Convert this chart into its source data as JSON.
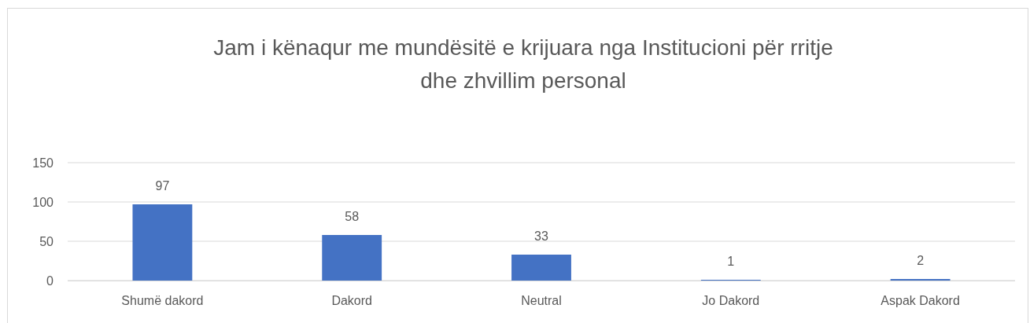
{
  "chart_data": {
    "type": "bar",
    "title": "Jam i kënaqur me mundësitë e krijuara nga Institucioni për rritje dhe zhvillim personal",
    "categories": [
      "Shumë dakord",
      "Dakord",
      "Neutral",
      "Jo Dakord",
      "Aspak Dakord"
    ],
    "values": [
      97,
      58,
      33,
      1,
      2
    ],
    "color": "#4472c4",
    "ylim": [
      0,
      150
    ],
    "yticks": [
      0,
      50,
      100,
      150
    ],
    "grid": "y",
    "data_labels": true
  }
}
